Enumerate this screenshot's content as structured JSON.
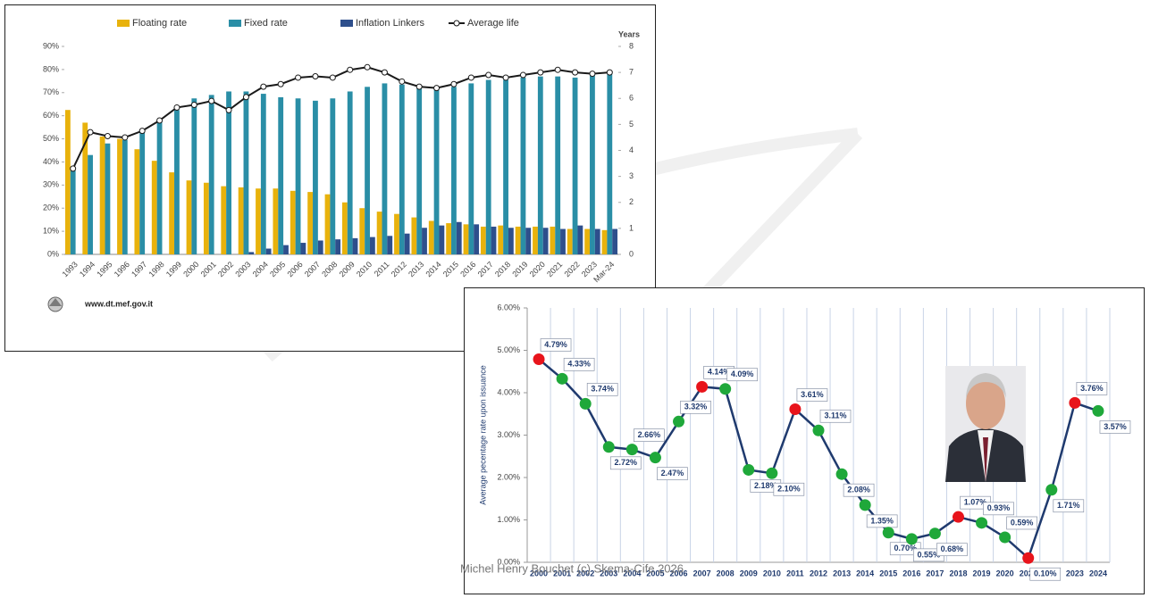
{
  "chart_data": [
    {
      "type": "bar",
      "categories": [
        "1993",
        "1994",
        "1995",
        "1996",
        "1997",
        "1998",
        "1999",
        "2000",
        "2001",
        "2002",
        "2003",
        "2004",
        "2005",
        "2006",
        "2007",
        "2008",
        "2009",
        "2010",
        "2011",
        "2012",
        "2013",
        "2014",
        "2015",
        "2016",
        "2017",
        "2018",
        "2019",
        "2020",
        "2021",
        "2022",
        "2023",
        "Mar-24"
      ],
      "series": [
        {
          "name": "Floating rate",
          "color": "#e8b20c",
          "values": [
            62.5,
            57,
            51,
            50,
            45.5,
            40.5,
            35.5,
            32,
            31,
            29.5,
            29,
            28.5,
            28.5,
            27.5,
            27,
            26,
            22.5,
            20,
            18.5,
            17.5,
            16,
            14.5,
            13.5,
            13,
            12,
            12.5,
            12,
            12,
            12,
            11,
            11,
            10.5
          ]
        },
        {
          "name": "Fixed rate",
          "color": "#2a8ea6",
          "values": [
            36.5,
            43,
            48,
            49.5,
            53,
            58,
            62.5,
            67.5,
            69,
            70.5,
            70.5,
            69.5,
            68,
            67.5,
            66.5,
            67.5,
            70.5,
            72.5,
            74,
            73.5,
            72.5,
            72,
            72.5,
            74,
            75.5,
            75.5,
            76.5,
            77,
            77,
            76.5,
            78,
            79
          ]
        },
        {
          "name": "Inflation Linkers",
          "color": "#2e4f8c",
          "values": [
            0,
            0,
            0,
            0,
            0,
            0,
            0,
            0,
            0,
            0,
            1,
            2.5,
            4,
            5,
            6,
            6.5,
            7,
            7.5,
            8,
            9,
            11.5,
            12.5,
            14,
            13,
            12,
            11.5,
            11.5,
            11.5,
            11,
            12.5,
            11,
            11
          ]
        },
        {
          "name": "Average life",
          "color": "#1a1a1a",
          "type": "line",
          "axis": "y2",
          "values": [
            3.3,
            4.7,
            4.55,
            4.5,
            4.75,
            5.15,
            5.65,
            5.75,
            5.9,
            5.55,
            6.05,
            6.45,
            6.55,
            6.8,
            6.85,
            6.8,
            7.1,
            7.2,
            7.0,
            6.65,
            6.45,
            6.4,
            6.55,
            6.8,
            6.9,
            6.8,
            6.9,
            7.0,
            7.1,
            7.0,
            6.95,
            7.0
          ]
        }
      ],
      "ylim": [
        0,
        90
      ],
      "yticks": [
        {
          "value": 0,
          "label": "0%"
        },
        {
          "value": 10,
          "label": "10%"
        },
        {
          "value": 20,
          "label": "20%"
        },
        {
          "value": 30,
          "label": "30%"
        },
        {
          "value": 40,
          "label": "40%"
        },
        {
          "value": 50,
          "label": "50%"
        },
        {
          "value": 60,
          "label": "60%"
        },
        {
          "value": 70,
          "label": "70%"
        },
        {
          "value": 80,
          "label": "80%"
        },
        {
          "value": 90,
          "label": "90%"
        }
      ],
      "y2label": "Years",
      "y2lim": [
        0,
        8
      ],
      "y2ticks": [
        0,
        1,
        2,
        3,
        4,
        5,
        6,
        7,
        8
      ],
      "grid": false,
      "source": "www.dt.mef.gov.it"
    },
    {
      "type": "line",
      "ylabel": "Average pecentage rate upon issuance",
      "categories": [
        "2000",
        "2001",
        "2002",
        "2003",
        "2004",
        "2005",
        "2006",
        "2007",
        "2008",
        "2009",
        "2010",
        "2011",
        "2012",
        "2013",
        "2014",
        "2015",
        "2016",
        "2017",
        "2018",
        "2019",
        "2020",
        "2021",
        "2022",
        "2023",
        "2024"
      ],
      "color": "#1f3a6e",
      "values": [
        4.79,
        4.33,
        3.74,
        2.72,
        2.66,
        2.47,
        3.32,
        4.14,
        4.09,
        2.18,
        2.1,
        3.61,
        3.11,
        2.08,
        1.35,
        0.7,
        0.55,
        0.68,
        1.07,
        0.93,
        0.59,
        0.1,
        1.71,
        3.76,
        3.57
      ],
      "value_labels": [
        "4.79%",
        "4.33%",
        "3.74%",
        "2.72%",
        "2.66%",
        "2.47%",
        "3.32%",
        "4.14%",
        "4.09%",
        "2.18%",
        "2.10%",
        "3.61%",
        "3.11%",
        "2.08%",
        "1.35%",
        "0.70%",
        "0.55%",
        "0.68%",
        "1.07%",
        "0.93%",
        "0.59%",
        "0.10%",
        "1.71%",
        "3.76%",
        "3.57%"
      ],
      "point_colors": [
        "#e8141b",
        "#1fa83a",
        "#1fa83a",
        "#1fa83a",
        "#1fa83a",
        "#1fa83a",
        "#1fa83a",
        "#e8141b",
        "#1fa83a",
        "#1fa83a",
        "#1fa83a",
        "#e8141b",
        "#1fa83a",
        "#1fa83a",
        "#1fa83a",
        "#1fa83a",
        "#1fa83a",
        "#1fa83a",
        "#e8141b",
        "#1fa83a",
        "#1fa83a",
        "#e8141b",
        "#1fa83a",
        "#e8141b",
        "#1fa83a"
      ],
      "ylim": [
        0,
        6
      ],
      "yticks": [
        {
          "value": 0,
          "label": "0.00%"
        },
        {
          "value": 1,
          "label": "1.00%"
        },
        {
          "value": 2,
          "label": "2.00%"
        },
        {
          "value": 3,
          "label": "3.00%"
        },
        {
          "value": 4,
          "label": "4.00%"
        },
        {
          "value": 5,
          "label": "5.00%"
        },
        {
          "value": 6,
          "label": "6.00%"
        }
      ],
      "grid": true
    }
  ],
  "footer": "Michel Henry Bouchet (c) Skema-Cife 2026"
}
